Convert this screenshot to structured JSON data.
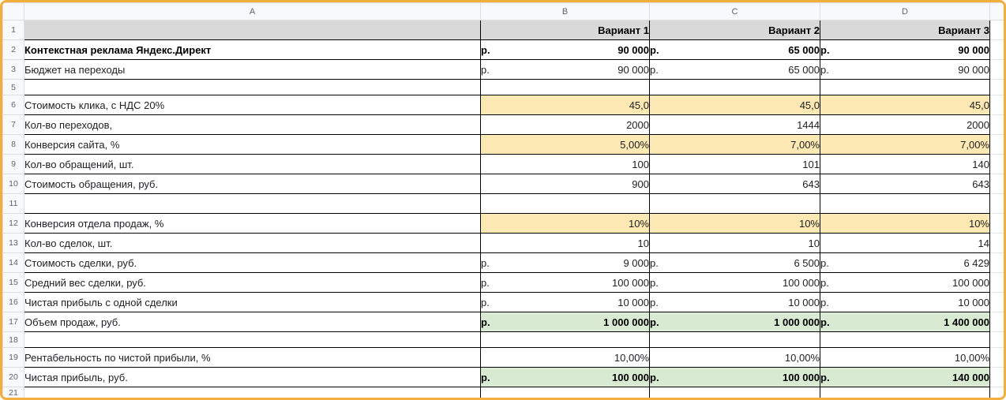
{
  "colors": {
    "frame_accent": "#f2ae3c",
    "fill_yellow": "#fce8b2",
    "fill_green": "#d9ead3",
    "fill_header_gray": "#d9d9d9"
  },
  "sheet": {
    "column_letters": [
      "A",
      "B",
      "C",
      "D"
    ],
    "corner_label": "",
    "rows": [
      {
        "num": "1",
        "label": "",
        "fill": "gray",
        "bold": true,
        "size": "default",
        "cells": [
          {
            "val": "Вариант 1"
          },
          {
            "val": "Вариант 2"
          },
          {
            "val": "Вариант 3"
          }
        ]
      },
      {
        "num": "2",
        "label": "Контекстная реклама Яндекс.Директ",
        "label_bold": true,
        "bold": true,
        "size": "default",
        "cells": [
          {
            "cur": "р.",
            "val": "90 000"
          },
          {
            "cur": "р.",
            "val": "65 000"
          },
          {
            "cur": "р.",
            "val": "90 000"
          }
        ]
      },
      {
        "num": "3",
        "label": "Бюджет на переходы",
        "size": "default",
        "cells": [
          {
            "cur": "р.",
            "val": "90 000"
          },
          {
            "cur": "р.",
            "val": "65 000"
          },
          {
            "cur": "р.",
            "val": "90 000"
          }
        ]
      },
      {
        "num": "5",
        "label": "",
        "size": "short",
        "cells": [
          {},
          {},
          {}
        ]
      },
      {
        "num": "6",
        "label": "Стоимость клика, с НДС 20%",
        "fill": "yellow",
        "size": "default",
        "cells": [
          {
            "val": "45,0"
          },
          {
            "val": "45,0"
          },
          {
            "val": "45,0"
          }
        ]
      },
      {
        "num": "7",
        "label": "Кол-во переходов,",
        "size": "default",
        "cells": [
          {
            "val": "2000"
          },
          {
            "val": "1444"
          },
          {
            "val": "2000"
          }
        ]
      },
      {
        "num": "8",
        "label": "Конверсия сайта, %",
        "fill": "yellow",
        "size": "default",
        "cells": [
          {
            "val": "5,00%"
          },
          {
            "val": "7,00%"
          },
          {
            "val": "7,00%"
          }
        ]
      },
      {
        "num": "9",
        "label": "Кол-во обращений, шт.",
        "size": "default",
        "cells": [
          {
            "val": "100"
          },
          {
            "val": "101"
          },
          {
            "val": "140"
          }
        ]
      },
      {
        "num": "10",
        "label": "Стоимость обращения, руб.",
        "size": "default",
        "cells": [
          {
            "val": "900"
          },
          {
            "val": "643"
          },
          {
            "val": "643"
          }
        ]
      },
      {
        "num": "11",
        "label": "",
        "size": "default",
        "cells": [
          {},
          {},
          {}
        ]
      },
      {
        "num": "12",
        "label": "Конверсия отдела продаж, %",
        "fill": "yellow",
        "size": "default",
        "cells": [
          {
            "val": "10%"
          },
          {
            "val": "10%"
          },
          {
            "val": "10%"
          }
        ]
      },
      {
        "num": "13",
        "label": "Кол-во сделок, шт.",
        "size": "default",
        "cells": [
          {
            "val": "10"
          },
          {
            "val": "10"
          },
          {
            "val": "14"
          }
        ]
      },
      {
        "num": "14",
        "label": "Стоимость сделки, руб.",
        "size": "default",
        "cells": [
          {
            "cur": "р.",
            "val": "9 000"
          },
          {
            "cur": "р.",
            "val": "6 500"
          },
          {
            "cur": "р.",
            "val": "6 429"
          }
        ]
      },
      {
        "num": "15",
        "label": "Средний вес сделки, руб.",
        "size": "default",
        "cells": [
          {
            "cur": "р.",
            "val": "100 000"
          },
          {
            "cur": "р.",
            "val": "100 000"
          },
          {
            "cur": "р.",
            "val": "100 000"
          }
        ]
      },
      {
        "num": "16",
        "label": "Чистая прибыль с одной сделки",
        "size": "default",
        "cells": [
          {
            "cur": "р.",
            "val": "10 000"
          },
          {
            "cur": "р.",
            "val": "10 000"
          },
          {
            "cur": "р.",
            "val": "10 000"
          }
        ]
      },
      {
        "num": "17",
        "label": "Объем продаж, руб.",
        "fill": "green",
        "bold": true,
        "size": "default",
        "cells": [
          {
            "cur": "р.",
            "val": "1 000 000"
          },
          {
            "cur": "р.",
            "val": "1 000 000"
          },
          {
            "cur": "р.",
            "val": "1 400 000"
          }
        ]
      },
      {
        "num": "18",
        "label": "",
        "size": "short",
        "cells": [
          {},
          {},
          {}
        ]
      },
      {
        "num": "19",
        "label": "Рентабельность по чистой прибыли, %",
        "size": "default",
        "cells": [
          {
            "val": "10,00%"
          },
          {
            "val": "10,00%"
          },
          {
            "val": "10,00%"
          }
        ]
      },
      {
        "num": "20",
        "label": "Чистая прибыль, руб.",
        "fill": "green",
        "bold": true,
        "size": "default",
        "cells": [
          {
            "cur": "р.",
            "val": "100 000"
          },
          {
            "cur": "р.",
            "val": "100 000"
          },
          {
            "cur": "р.",
            "val": "140 000"
          }
        ]
      },
      {
        "num": "21",
        "label": "",
        "size": "tiny",
        "cells": [
          {},
          {},
          {}
        ]
      }
    ]
  }
}
